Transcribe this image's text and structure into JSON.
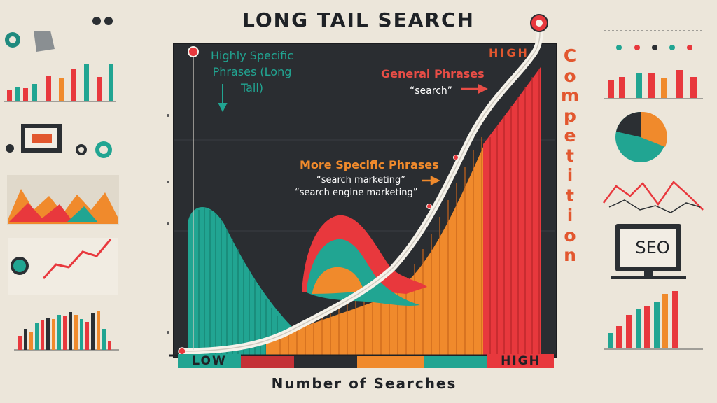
{
  "title": "LONG TAIL SEARCH",
  "chart_data": {
    "type": "area",
    "title": "LONG TAIL SEARCH",
    "xlabel": "Number of Searches",
    "ylabel": "Competition",
    "x_scale_labels": [
      "LOW",
      "HIGH"
    ],
    "y_scale_labels": [
      "HIGH"
    ],
    "annotations": {
      "long_tail": "Highly Specific Phrases (Long Tail)",
      "general": "General Phrases",
      "general_example": "“search”",
      "more_specific": "More Specific  Phrases",
      "more_specific_example_1": "“search marketing”",
      "more_specific_example_2": "“search engine marketing”"
    },
    "series": [
      {
        "name": "Highly Specific Phrases (Long Tail)",
        "color": "#21a592"
      },
      {
        "name": "More Specific  Phrases",
        "color": "#f08a2c"
      },
      {
        "name": "General Phrases",
        "color": "#e8383d"
      }
    ],
    "grid": false
  },
  "labels": {
    "long_tail": "Highly Specific Phrases (Long Tail)",
    "high_top": "HIGH",
    "general": "General Phrases",
    "general_example": "“search”",
    "more_specific": "More Specific  Phrases",
    "more_example_1": "“search marketing”",
    "more_example_2": "“search engine marketing”",
    "low": "LOW",
    "high_bottom": "HIGH",
    "xaxis": "Number of Searches",
    "yaxis_letters": [
      "C",
      "o",
      "m",
      "p",
      "e",
      "t",
      "i",
      "t",
      "i",
      "o",
      "n"
    ],
    "seo": "SEO"
  },
  "colors": {
    "teal": "#21a592",
    "orange": "#f08a2c",
    "red": "#e8383d",
    "panel": "#2a2d31",
    "background": "#ece6da"
  }
}
